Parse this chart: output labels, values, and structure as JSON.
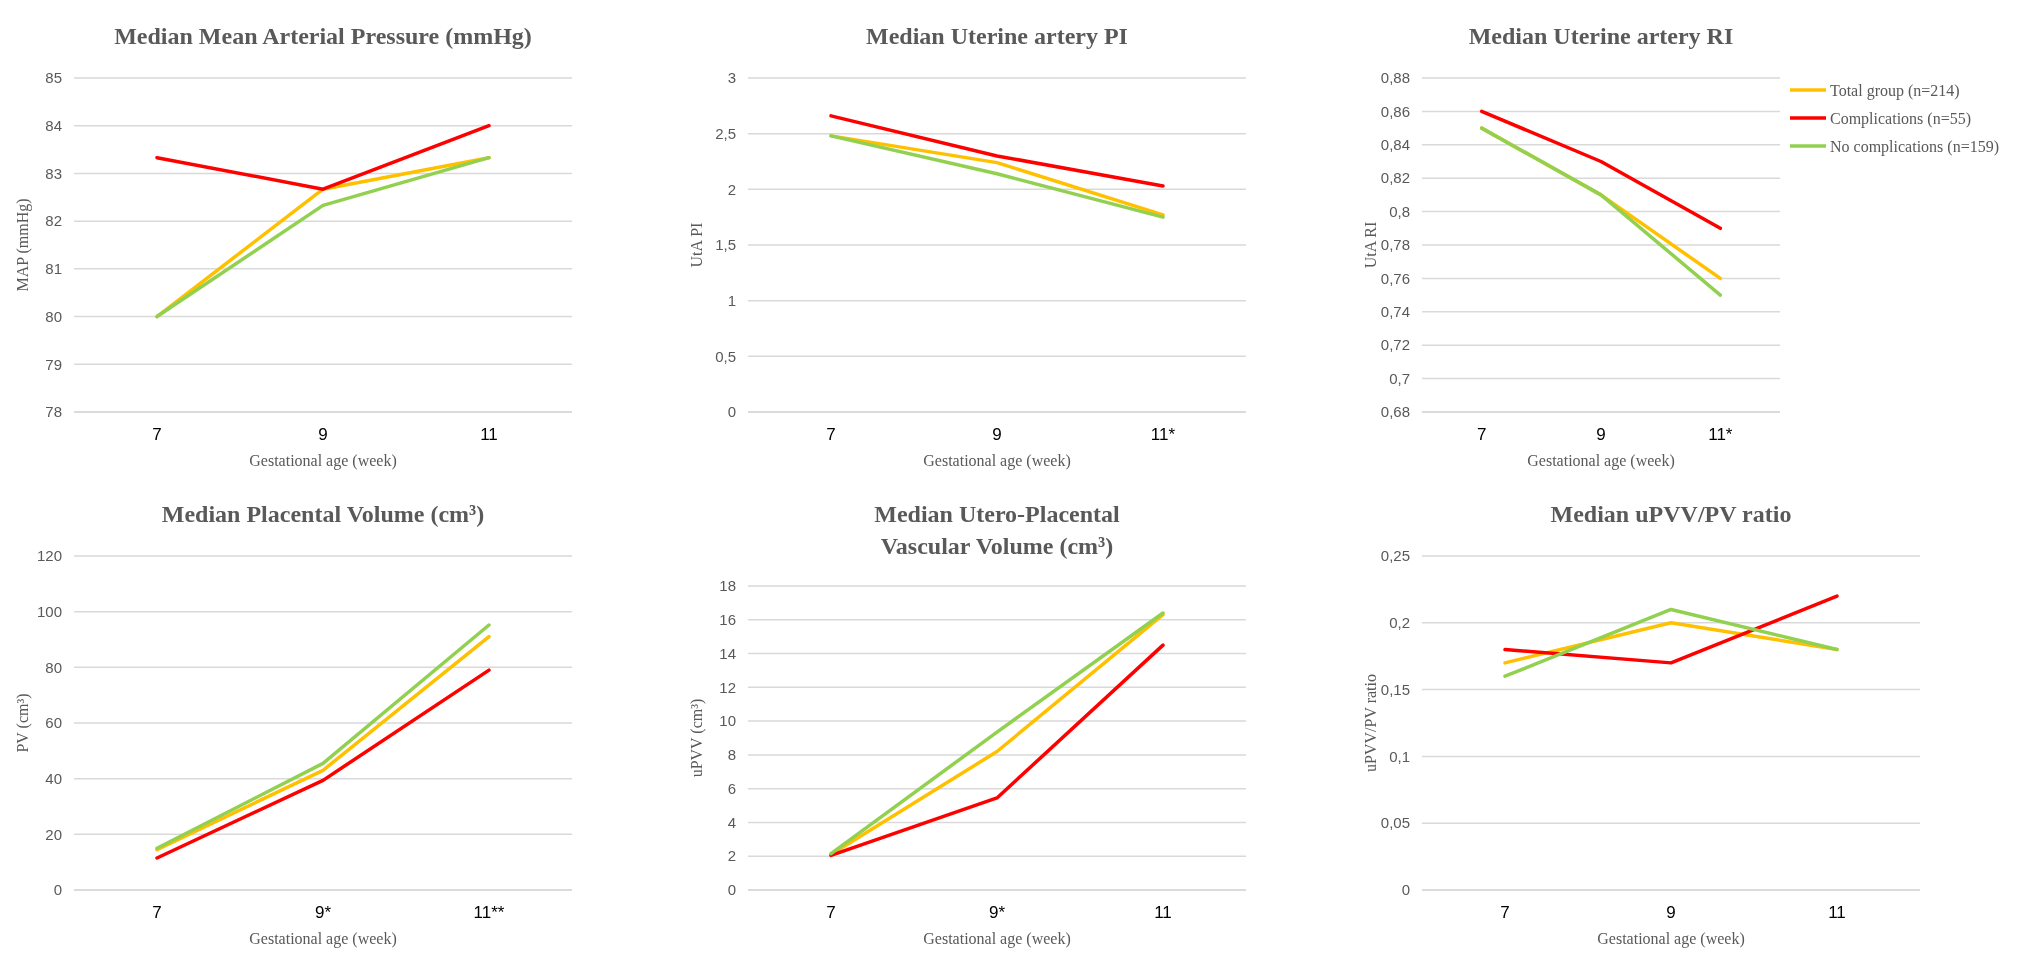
{
  "chart_data": [
    {
      "type": "line",
      "title": "Median Mean Arterial Pressure (mmHg)",
      "xlabel": "Gestational age (week)",
      "ylabel": "MAP (mmHg)",
      "categories": [
        "7",
        "9",
        "11"
      ],
      "ylim": [
        78,
        85
      ],
      "yticks": [
        78,
        79,
        80,
        81,
        82,
        83,
        84,
        85
      ],
      "grid": "y",
      "legend": false,
      "series": [
        {
          "color": "#ffc000",
          "values": [
            80,
            82.67,
            83.33
          ]
        },
        {
          "color": "#ff0000",
          "values": [
            83.33,
            82.67,
            84
          ]
        },
        {
          "color": "#92d050",
          "values": [
            80,
            82.33,
            83.33
          ]
        }
      ]
    },
    {
      "type": "line",
      "title": "Median Uterine artery PI",
      "xlabel": "Gestational age (week)",
      "ylabel": "UtA PI",
      "categories": [
        "7",
        "9",
        "11*"
      ],
      "ylim": [
        0,
        3
      ],
      "yticks": [
        0,
        {
          "value": 0.5,
          "label": "0,5"
        },
        1,
        {
          "value": 1.5,
          "label": "1,5"
        },
        2,
        {
          "value": 2.5,
          "label": "2,5"
        },
        3
      ],
      "grid": "y",
      "legend": false,
      "series": [
        {
          "color": "#ffc000",
          "values": [
            2.48,
            2.24,
            1.77
          ]
        },
        {
          "color": "#ff0000",
          "values": [
            2.66,
            2.3,
            2.03
          ]
        },
        {
          "color": "#92d050",
          "values": [
            2.48,
            2.14,
            1.75
          ]
        }
      ]
    },
    {
      "type": "line",
      "title": "Median Uterine artery RI",
      "xlabel": "Gestational age (week)",
      "ylabel": "UtA RI",
      "categories": [
        "7",
        "9",
        "11*"
      ],
      "ylim": [
        0.68,
        0.88
      ],
      "yticks": [
        {
          "value": 0.68,
          "label": "0,68"
        },
        {
          "value": 0.7,
          "label": "0,7"
        },
        {
          "value": 0.72,
          "label": "0,72"
        },
        {
          "value": 0.74,
          "label": "0,74"
        },
        {
          "value": 0.76,
          "label": "0,76"
        },
        {
          "value": 0.78,
          "label": "0,78"
        },
        {
          "value": 0.8,
          "label": "0,8"
        },
        {
          "value": 0.82,
          "label": "0,82"
        },
        {
          "value": 0.84,
          "label": "0,84"
        },
        {
          "value": 0.86,
          "label": "0,86"
        },
        {
          "value": 0.88,
          "label": "0,88"
        }
      ],
      "grid": "y",
      "legend": "right",
      "series": [
        {
          "name": "Total group (n=214)",
          "color": "#ffc000",
          "values": [
            0.85,
            0.81,
            0.76
          ]
        },
        {
          "name": "Complications (n=55)",
          "color": "#ff0000",
          "values": [
            0.86,
            0.83,
            0.79
          ]
        },
        {
          "name": "No complications (n=159)",
          "color": "#92d050",
          "values": [
            0.85,
            0.81,
            0.75
          ]
        }
      ]
    },
    {
      "type": "line",
      "title": "Median Placental Volume (cm³)",
      "xlabel": "Gestational age (week)",
      "ylabel": "PV (cm³)",
      "categories": [
        "7",
        "9*",
        "11**"
      ],
      "ylim": [
        0,
        120
      ],
      "yticks": [
        0,
        20,
        40,
        60,
        80,
        100,
        120
      ],
      "grid": "y",
      "legend": false,
      "series": [
        {
          "color": "#ffc000",
          "values": [
            14.5,
            43,
            91
          ]
        },
        {
          "color": "#ff0000",
          "values": [
            11.5,
            39.4,
            79
          ]
        },
        {
          "color": "#92d050",
          "values": [
            15,
            45.5,
            95.2
          ]
        }
      ]
    },
    {
      "type": "line",
      "title": "Median Utero-Placental Vascular Volume (cm³)",
      "xlabel": "Gestational age (week)",
      "ylabel": "uPVV (cm³)",
      "categories": [
        "7",
        "9*",
        "11"
      ],
      "ylim": [
        0,
        18
      ],
      "yticks": [
        0,
        2,
        4,
        6,
        8,
        10,
        12,
        14,
        16,
        18
      ],
      "grid": "y",
      "legend": false,
      "series": [
        {
          "color": "#ffc000",
          "values": [
            2.1,
            8.2,
            16.3
          ]
        },
        {
          "color": "#ff0000",
          "values": [
            2.05,
            5.45,
            14.5
          ]
        },
        {
          "color": "#92d050",
          "values": [
            2.15,
            9.35,
            16.4
          ]
        }
      ]
    },
    {
      "type": "line",
      "title": "Median uPVV/PV ratio",
      "xlabel": "Gestational age (week)",
      "ylabel": "uPVV/PV ratio",
      "categories": [
        "7",
        "9",
        "11"
      ],
      "ylim": [
        0,
        0.25
      ],
      "yticks": [
        0,
        {
          "value": 0.05,
          "label": "0,05"
        },
        {
          "value": 0.1,
          "label": "0,1"
        },
        {
          "value": 0.15,
          "label": "0,15"
        },
        {
          "value": 0.2,
          "label": "0,2"
        },
        {
          "value": 0.25,
          "label": "0,25"
        }
      ],
      "grid": "y",
      "legend": false,
      "series": [
        {
          "color": "#ffc000",
          "values": [
            0.17,
            0.2,
            0.18
          ]
        },
        {
          "color": "#ff0000",
          "values": [
            0.18,
            0.17,
            0.22
          ]
        },
        {
          "color": "#92d050",
          "values": [
            0.16,
            0.21,
            0.18
          ]
        }
      ]
    }
  ]
}
